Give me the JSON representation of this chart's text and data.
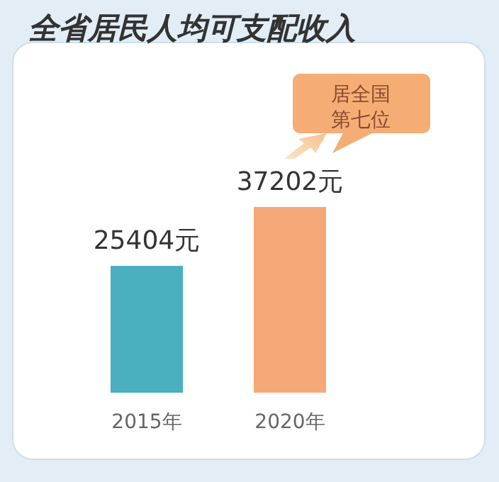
{
  "chart_data": {
    "type": "bar",
    "title": "全省居民人均可支配收入",
    "categories": [
      "2015年",
      "2020年"
    ],
    "values": [
      25404,
      37202
    ],
    "colors": [
      "#4aafbf",
      "#f6a978"
    ],
    "value_labels": [
      "25404元",
      "37202元"
    ],
    "annotations": [
      "居全国第七位"
    ]
  }
}
